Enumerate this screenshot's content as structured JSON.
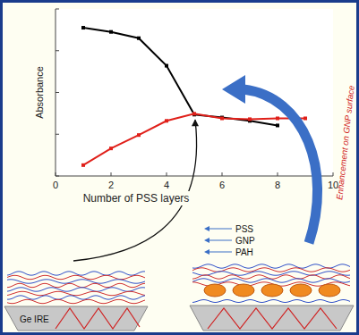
{
  "chart_data": {
    "type": "line",
    "x_label": "Number of PSS layers",
    "y_label": "Absorbance",
    "annotations": [
      "Enhancement on GNP surface"
    ],
    "x": [
      1,
      2,
      3,
      4,
      5,
      6,
      7,
      8,
      9
    ],
    "series": [
      {
        "color": "#000000",
        "values": [
          3.55,
          3.45,
          3.3,
          2.64,
          1.47,
          1.4,
          1.32,
          1.21,
          null
        ]
      },
      {
        "color": "#e0201a",
        "values": [
          0.26,
          0.66,
          0.98,
          1.32,
          1.49,
          1.38,
          1.36,
          1.38,
          1.38
        ]
      }
    ],
    "xlim": [
      0,
      10
    ],
    "xticks": [
      0,
      2,
      4,
      6,
      8,
      10
    ],
    "ylim": [
      0,
      4
    ],
    "yticks": [
      0,
      1,
      2,
      3,
      4
    ],
    "tick_labels": "x",
    "marker": "square"
  },
  "diagram": {
    "left": {
      "substrate": "Ge IRE"
    },
    "right": {
      "layers": [
        "PSS",
        "GNP",
        "PAH"
      ]
    }
  }
}
